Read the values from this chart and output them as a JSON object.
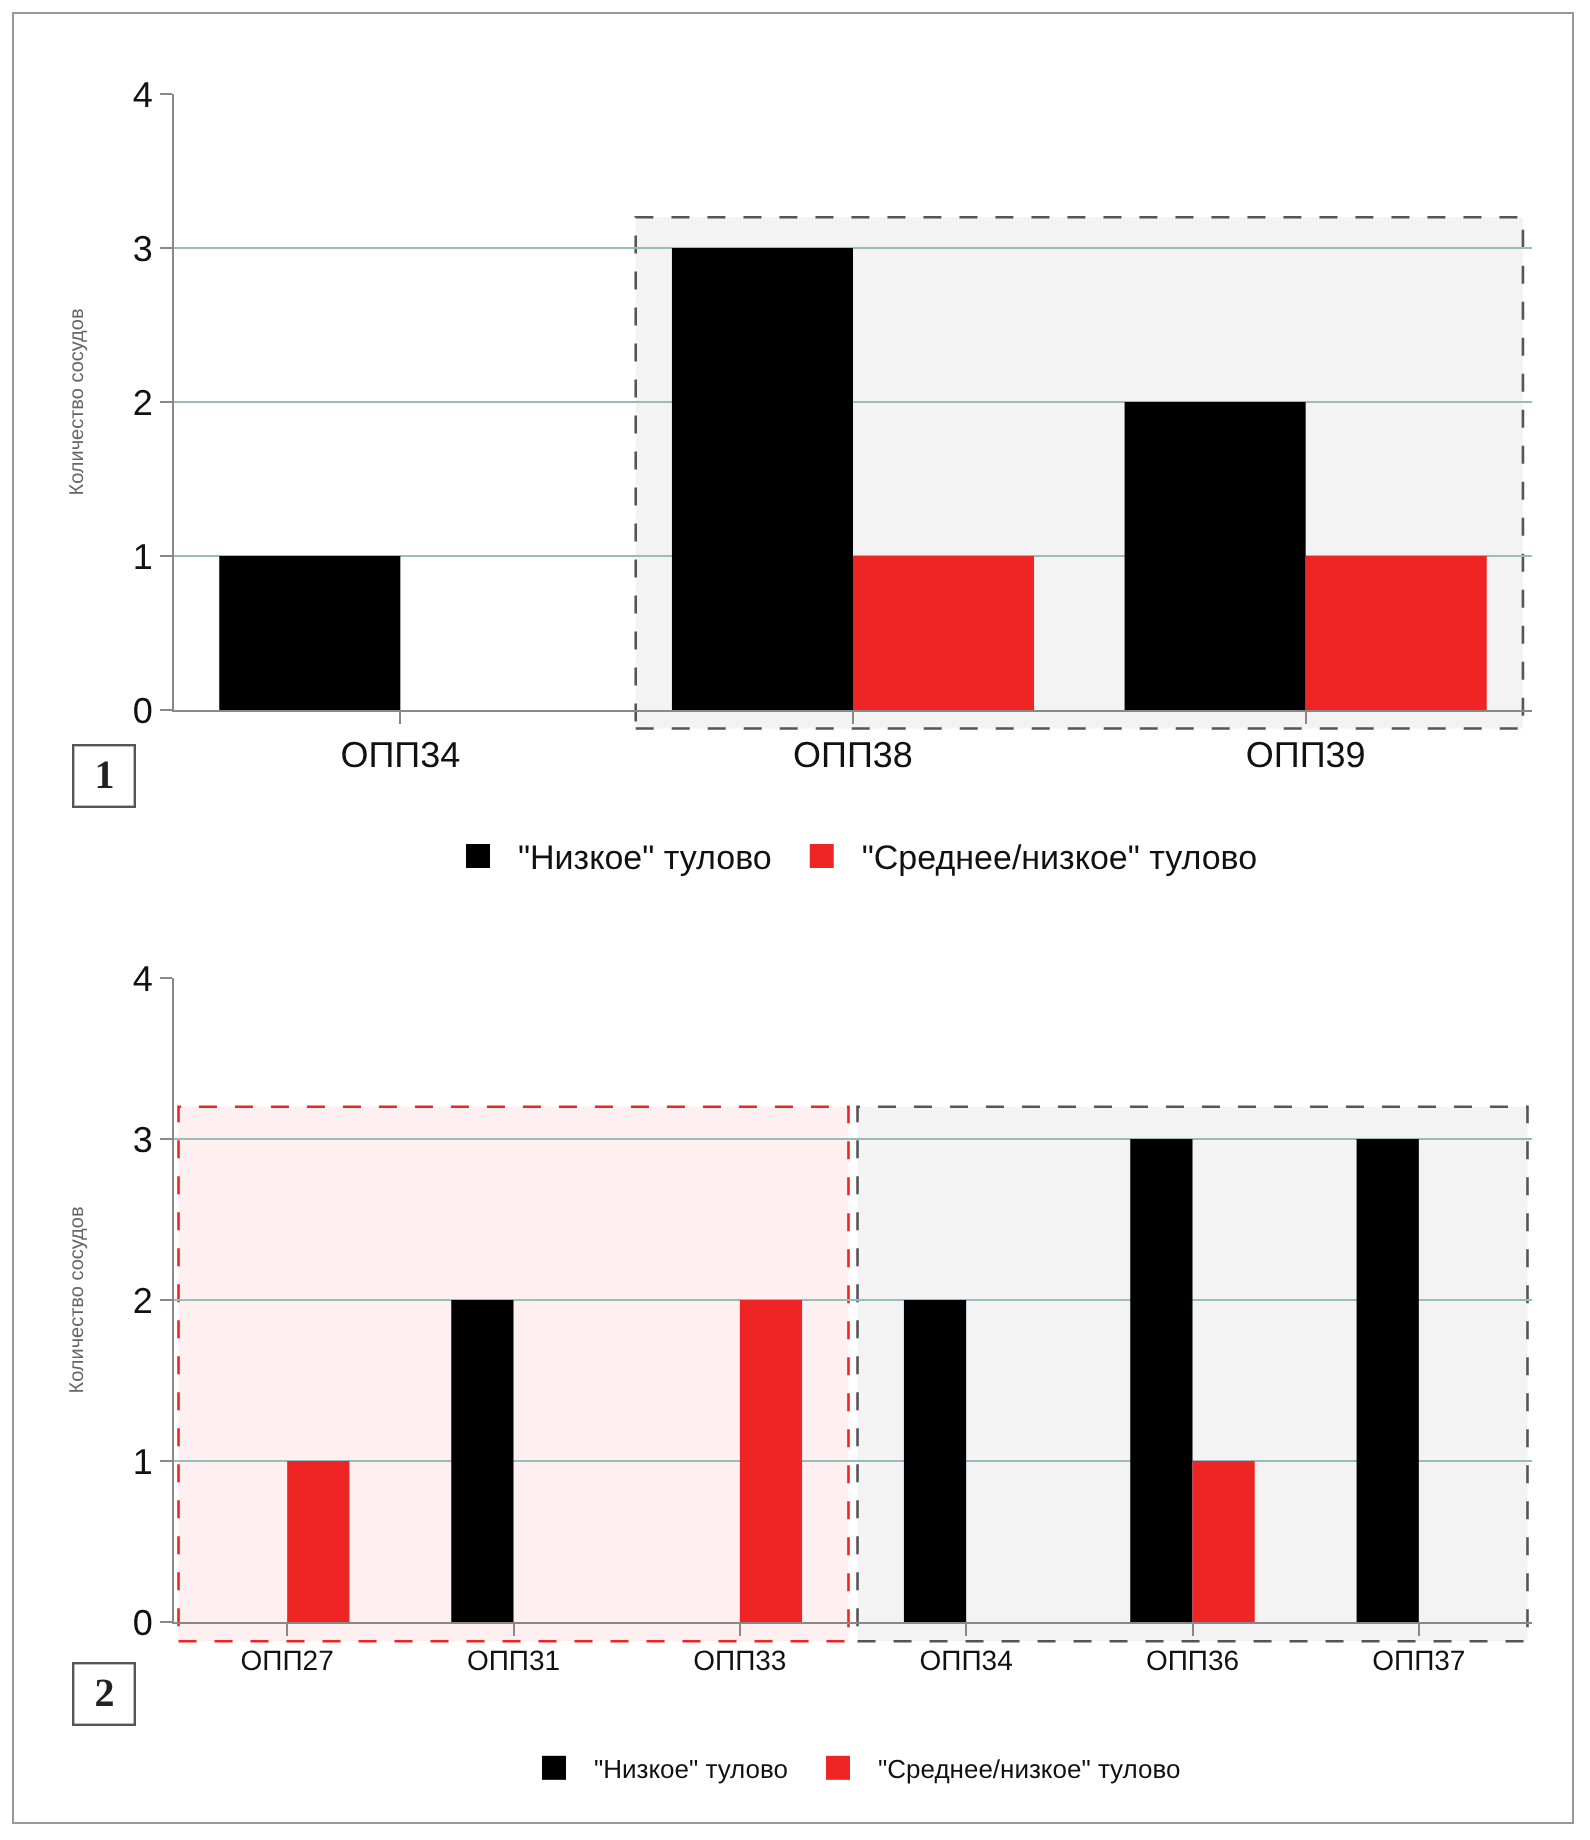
{
  "chart_data": [
    {
      "type": "bar",
      "categories": [
        "ОПП34",
        "ОПП38",
        "ОПП39"
      ],
      "ylabel": "Количество сосудов",
      "ylim": [
        0,
        4
      ],
      "yticks": [
        0,
        1,
        2,
        3,
        4
      ],
      "grid": "y",
      "legend": "bottom",
      "series": [
        {
          "name": "\"Низкое\" тулово",
          "color": "#000000",
          "values": [
            1,
            3,
            2
          ]
        },
        {
          "name": "\"Среднее/низкое\" тулово",
          "color": "#ee2524",
          "values": [
            0,
            1,
            1
          ]
        }
      ],
      "bands": [
        {
          "axis": "x",
          "from": "ОПП38",
          "to": "ОПП39",
          "color": "#555555"
        }
      ],
      "annotations": [
        "1"
      ]
    },
    {
      "type": "bar",
      "categories": [
        "ОПП27",
        "ОПП31",
        "ОПП33",
        "ОПП34",
        "ОПП36",
        "ОПП37"
      ],
      "ylabel": "Количество сосудов",
      "ylim": [
        0,
        4
      ],
      "yticks": [
        0,
        1,
        2,
        3,
        4
      ],
      "grid": "y",
      "legend": "bottom",
      "series": [
        {
          "name": "\"Низкое\" тулово",
          "color": "#000000",
          "values": [
            0,
            2,
            0,
            2,
            3,
            3
          ]
        },
        {
          "name": "\"Среднее/низкое\" тулово",
          "color": "#ee2524",
          "values": [
            1,
            0,
            2,
            0,
            1,
            0
          ]
        }
      ],
      "bands": [
        {
          "axis": "x",
          "from": "ОПП27",
          "to": "ОПП33",
          "color": "#ee2524"
        },
        {
          "axis": "x",
          "from": "ОПП34",
          "to": "ОПП37",
          "color": "#555555"
        }
      ],
      "annotations": [
        "2"
      ]
    }
  ]
}
